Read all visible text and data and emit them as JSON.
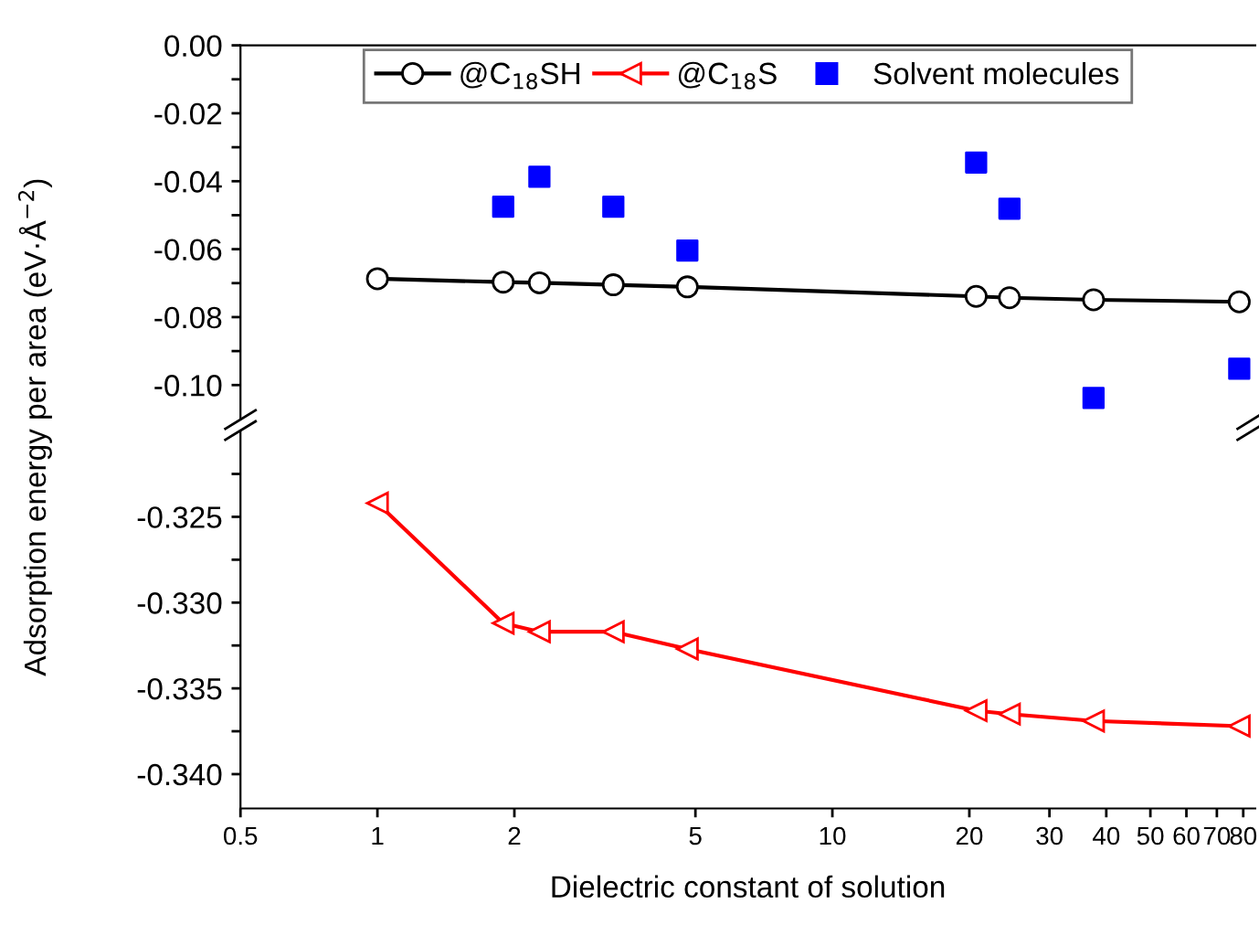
{
  "chart_data": [
    {
      "type": "line",
      "log": "x",
      "ylabel": "Adsorption energy per area (eV·Å$^{−2}$)",
      "tick_labels": "y",
      "legend": "top",
      "grid": false,
      "xlim": [
        0.5,
        85
      ],
      "xticks": [
        0.5,
        1,
        2,
        5,
        10,
        20,
        30,
        40,
        50,
        60,
        70,
        80
      ],
      "ylim": [
        -0.11,
        0.0
      ],
      "yticks": [
        {
          "value": 0.0,
          "label": "0.00"
        },
        {
          "value": -0.01,
          "label": null
        },
        {
          "value": -0.02,
          "label": "-0.02"
        },
        {
          "value": -0.03,
          "label": null
        },
        {
          "value": -0.04,
          "label": "-0.04"
        },
        {
          "value": -0.05,
          "label": null
        },
        {
          "value": -0.06,
          "label": "-0.06"
        },
        {
          "value": -0.07,
          "label": null
        },
        {
          "value": -0.08,
          "label": "-0.08"
        },
        {
          "value": -0.09,
          "label": null
        },
        {
          "value": -0.1,
          "label": "-0.10"
        }
      ],
      "series": [
        {
          "name": "@C$_{18}$SH",
          "color": "#000000",
          "marker": "circle",
          "line_style": "solid",
          "x": [
            1,
            1.89,
            2.27,
            3.3,
            4.8,
            20.7,
            24.5,
            37.5,
            78.4
          ],
          "values": [
            -0.0687,
            -0.0697,
            -0.0699,
            -0.0705,
            -0.0711,
            -0.0739,
            -0.0743,
            -0.0749,
            -0.0755
          ]
        },
        {
          "name": "Solvent molecules",
          "type": "scatter",
          "color": "#0000ff",
          "marker": "square",
          "x": [
            1.89,
            2.27,
            3.3,
            4.8,
            20.7,
            24.5,
            37.5,
            78.4
          ],
          "values": [
            -0.0475,
            -0.0387,
            -0.0475,
            -0.0604,
            -0.0345,
            -0.0481,
            -0.1038,
            -0.0952
          ]
        }
      ]
    },
    {
      "type": "line",
      "log": "x",
      "xlabel": "Dielectric constant of solution",
      "legend": "top",
      "grid": false,
      "xlim": [
        0.5,
        85
      ],
      "xticks": [
        0.5,
        1,
        2,
        5,
        10,
        20,
        30,
        40,
        50,
        60,
        70,
        80
      ],
      "ylim": [
        -0.342,
        -0.32
      ],
      "yticks": [
        {
          "value": -0.3225,
          "label": null
        },
        {
          "value": -0.325,
          "label": "-0.325"
        },
        {
          "value": -0.3275,
          "label": null
        },
        {
          "value": -0.33,
          "label": "-0.330"
        },
        {
          "value": -0.3325,
          "label": null
        },
        {
          "value": -0.335,
          "label": "-0.335"
        },
        {
          "value": -0.3375,
          "label": null
        },
        {
          "value": -0.34,
          "label": "-0.340"
        }
      ],
      "series": [
        {
          "name": "@C$_{18}$S",
          "color": "#ff0000",
          "marker": "triangle",
          "line_style": "solid",
          "x": [
            1,
            1.89,
            2.27,
            3.3,
            4.8,
            20.7,
            24.5,
            37.5,
            78.4
          ],
          "values": [
            -0.3242,
            -0.3312,
            -0.3317,
            -0.3317,
            -0.3327,
            -0.3363,
            -0.3365,
            -0.3369,
            -0.3372
          ]
        }
      ]
    }
  ]
}
